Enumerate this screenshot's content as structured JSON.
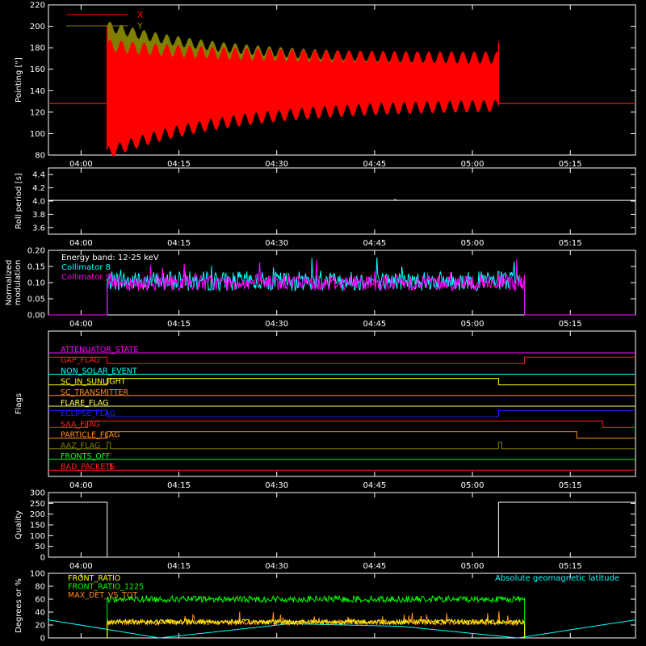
{
  "colors": {
    "background": "#000000",
    "axes": "#ffffff",
    "x_series": "#ff0000",
    "y_series": "#808000",
    "cyan": "#00ffff",
    "magenta": "#ff00ff",
    "green": "#00ff00",
    "orange": "#ff8c1a"
  },
  "time_axis": {
    "ticks": [
      "04:00",
      "04:15",
      "04:30",
      "04:45",
      "05:00",
      "05:15"
    ]
  },
  "chart_data": [
    {
      "id": "pointing",
      "type": "area",
      "ylabel": "Pointing [\"]",
      "yticks": [
        "220",
        "200",
        "180",
        "160",
        "140",
        "120",
        "100",
        "80"
      ],
      "ylim": [
        80,
        220
      ],
      "legend": [
        "X",
        "Y"
      ],
      "legend_placement": "top-left",
      "series": [
        {
          "name": "X",
          "baseline": 128,
          "active_start": "04:04",
          "active_end": "05:04",
          "band_low_start": 82,
          "band_low_end": 128,
          "band_high_start": 182,
          "band_high_end": 170
        },
        {
          "name": "Y",
          "baseline": 128,
          "active_start": "04:04",
          "active_end": "05:04",
          "band_low_start": 140,
          "band_low_end": 132,
          "band_high_start": 200,
          "band_high_end": 168
        }
      ]
    },
    {
      "id": "roll_period",
      "type": "line",
      "ylabel": "Roll period [s]",
      "yticks": [
        "4.4",
        "4.2",
        "4.0",
        "3.8",
        "3.6"
      ],
      "ylim": [
        3.5,
        4.5
      ],
      "value": 4.01
    },
    {
      "id": "modulation",
      "type": "line",
      "ylabel": "Normalized modulation",
      "yticks": [
        "0.20",
        "0.15",
        "0.10",
        "0.05",
        "0.00"
      ],
      "ylim": [
        0,
        0.2
      ],
      "annotation": "Energy band: 12-25 keV",
      "series": [
        {
          "name": "Collimator 8",
          "active_start": "04:04",
          "active_end": "05:08",
          "mean": 0.105,
          "spread": 0.03
        },
        {
          "name": "Collimator 9",
          "active_start": "04:04",
          "active_end": "05:08",
          "mean": 0.1,
          "spread": 0.025
        }
      ]
    },
    {
      "id": "flags",
      "type": "line",
      "ylabel": "Flags",
      "series": [
        {
          "name": "ATTENUATOR_STATE",
          "color": "#ff00ff",
          "segments": [
            [
              "03:55",
              0
            ],
            [
              "05:25",
              0
            ]
          ]
        },
        {
          "name": "GAP_FLAG",
          "color": "#ff2020",
          "segments": [
            [
              "03:55",
              1
            ],
            [
              "04:04",
              1
            ],
            [
              "04:04",
              0
            ],
            [
              "05:08",
              0
            ],
            [
              "05:08",
              1
            ],
            [
              "05:25",
              1
            ]
          ]
        },
        {
          "name": "NON_SOLAR_EVENT",
          "color": "#00ffff",
          "segments": [
            [
              "03:55",
              0
            ],
            [
              "05:25",
              0
            ]
          ]
        },
        {
          "name": "SC_IN_SUNLIGHT",
          "color": "#ffff00",
          "segments": [
            [
              "03:55",
              0
            ],
            [
              "04:04",
              0
            ],
            [
              "04:04",
              1
            ],
            [
              "05:04",
              1
            ],
            [
              "05:04",
              0
            ],
            [
              "05:25",
              0
            ]
          ]
        },
        {
          "name": "SC_TRANSMITTER",
          "color": "#ff8c1a",
          "segments": [
            [
              "03:55",
              0
            ],
            [
              "05:25",
              0
            ]
          ]
        },
        {
          "name": "FLARE_FLAG",
          "color": "#ffff60",
          "segments": [
            [
              "03:55",
              0
            ],
            [
              "05:25",
              0
            ]
          ]
        },
        {
          "name": "ECLIPSE_FLAG",
          "color": "#2020ff",
          "segments": [
            [
              "03:55",
              1
            ],
            [
              "04:04",
              1
            ],
            [
              "04:04",
              0
            ],
            [
              "05:04",
              0
            ],
            [
              "05:04",
              1
            ],
            [
              "05:25",
              1
            ]
          ]
        },
        {
          "name": "SAA_FLAG",
          "color": "#ff2020",
          "segments": [
            [
              "03:55",
              0
            ],
            [
              "04:01",
              0
            ],
            [
              "04:01",
              1
            ],
            [
              "05:20",
              1
            ],
            [
              "05:20",
              0
            ],
            [
              "05:25",
              0
            ]
          ]
        },
        {
          "name": "PARTICLE_FLAG",
          "color": "#ff8c1a",
          "segments": [
            [
              "03:55",
              0
            ],
            [
              "04:04",
              0
            ],
            [
              "04:04",
              1
            ],
            [
              "05:16",
              1
            ],
            [
              "05:16",
              0
            ],
            [
              "05:25",
              0
            ]
          ]
        },
        {
          "name": "AAZ_FLAG",
          "color": "#808000",
          "segments": [
            [
              "03:55",
              0
            ],
            [
              "04:04",
              0
            ],
            [
              "04:04",
              1
            ],
            [
              "04:04.5",
              1
            ],
            [
              "04:04.5",
              0
            ],
            [
              "05:04",
              0
            ],
            [
              "05:04",
              1
            ],
            [
              "05:04.5",
              1
            ],
            [
              "05:04.5",
              0
            ],
            [
              "05:25",
              0
            ]
          ]
        },
        {
          "name": "FRONTS_OFF",
          "color": "#00ff00",
          "segments": [
            [
              "03:55",
              0
            ],
            [
              "05:25",
              0
            ]
          ]
        },
        {
          "name": "BAD_PACKETS",
          "color": "#ff2020",
          "segments": [
            [
              "03:55",
              0
            ],
            [
              "04:04.5",
              0
            ],
            [
              "04:04.5",
              1
            ],
            [
              "04:04.7",
              1
            ],
            [
              "04:04.7",
              0
            ],
            [
              "05:25",
              0
            ]
          ]
        }
      ]
    },
    {
      "id": "quality",
      "type": "line",
      "ylabel": "Quality",
      "yticks": [
        "300",
        "250",
        "200",
        "150",
        "100",
        "50",
        "0"
      ],
      "ylim": [
        0,
        300
      ],
      "segments": [
        [
          "03:55",
          255
        ],
        [
          "04:04",
          255
        ],
        [
          "04:04",
          0
        ],
        [
          "05:04",
          0
        ],
        [
          "05:04",
          255
        ],
        [
          "05:25",
          255
        ]
      ]
    },
    {
      "id": "ratios",
      "type": "line",
      "ylabel": "Degrees or %",
      "yticks": [
        "100",
        "80",
        "60",
        "40",
        "20",
        "0"
      ],
      "ylim": [
        0,
        100
      ],
      "legend_placement": "top-left",
      "series": [
        {
          "name": "FRONT_RATIO",
          "color": "#ffff00",
          "level": 25
        },
        {
          "name": "FRONT_RATIO_1225",
          "color": "#00ff00",
          "level": 60
        },
        {
          "name": "MAX_DET_VS_TOT",
          "color": "#ff8c1a",
          "level": 24
        }
      ],
      "geomag": {
        "name": "Absolute geomagnetic latitude",
        "color": "#00ffff",
        "points": [
          [
            "03:55",
            28
          ],
          [
            "04:12",
            0
          ],
          [
            "04:32",
            22
          ],
          [
            "04:49",
            18
          ],
          [
            "05:07",
            0
          ],
          [
            "05:25",
            28
          ]
        ]
      }
    }
  ]
}
